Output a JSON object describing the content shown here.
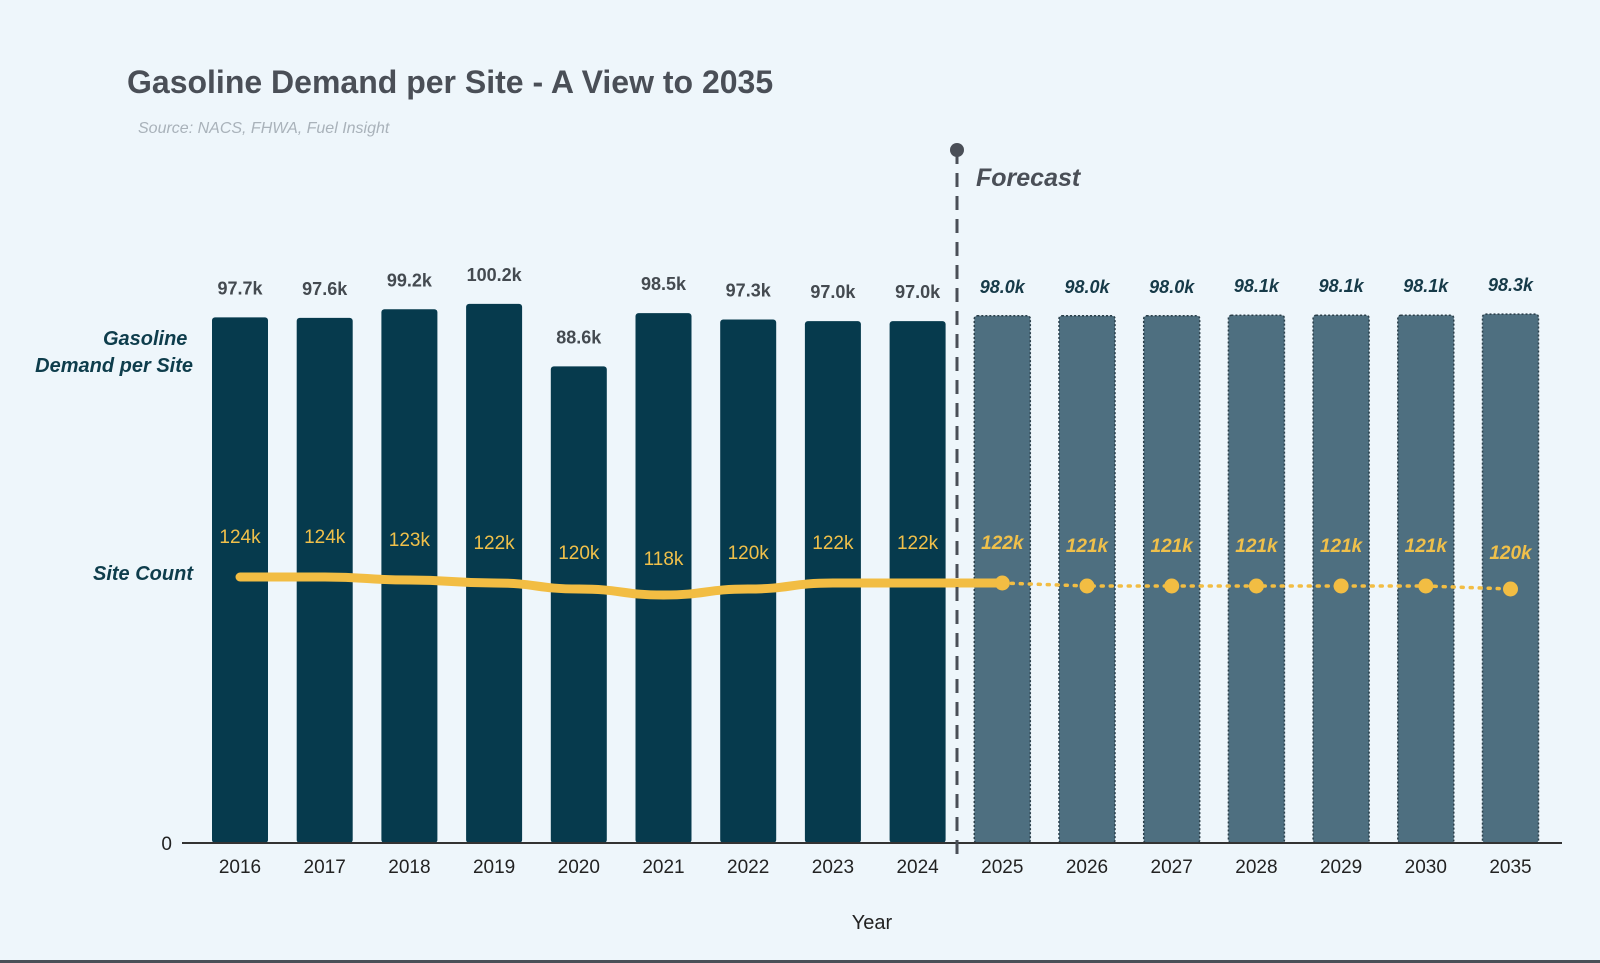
{
  "chart_data": {
    "type": "bar",
    "title": "Gasoline Demand per Site - A View to 2035",
    "subtitle": "Source: NACS, FHWA, Fuel Insight",
    "xlabel": "Year",
    "ylabel_bars": "Gasoline Demand per Site",
    "ylabel_line": "Site Count",
    "y_zero_label": "0",
    "forecast_label": "Forecast",
    "forecast_start_category": "2025",
    "categories": [
      "2016",
      "2017",
      "2018",
      "2019",
      "2020",
      "2021",
      "2022",
      "2023",
      "2024",
      "2025",
      "2026",
      "2027",
      "2028",
      "2029",
      "2030",
      "2035"
    ],
    "series": [
      {
        "name": "Gasoline Demand per Site",
        "type": "bar",
        "values": [
          97.7,
          97.6,
          99.2,
          100.2,
          88.6,
          98.5,
          97.3,
          97.0,
          97.0,
          98.0,
          98.0,
          98.0,
          98.1,
          98.1,
          98.1,
          98.3
        ],
        "labels": [
          "97.7k",
          "97.6k",
          "99.2k",
          "100.2k",
          "88.6k",
          "98.5k",
          "97.3k",
          "97.0k",
          "97.0k",
          "98.0k",
          "98.0k",
          "98.0k",
          "98.1k",
          "98.1k",
          "98.1k",
          "98.3k"
        ],
        "units": "thousand"
      },
      {
        "name": "Site Count",
        "type": "line",
        "values": [
          124,
          124,
          123,
          122,
          120,
          118,
          120,
          122,
          122,
          122,
          121,
          121,
          121,
          121,
          121,
          120
        ],
        "labels": [
          "124k",
          "124k",
          "123k",
          "122k",
          "120k",
          "118k",
          "120k",
          "122k",
          "122k",
          "122k",
          "121k",
          "121k",
          "121k",
          "121k",
          "121k",
          "120k"
        ],
        "units": "thousand"
      }
    ],
    "forecast_flags": [
      false,
      false,
      false,
      false,
      false,
      false,
      false,
      false,
      false,
      true,
      true,
      true,
      true,
      true,
      true,
      true
    ],
    "ylim_bars": [
      0,
      102
    ],
    "colors": {
      "actual_bar": "#063a4d",
      "forecast_bar": "#4e6f80",
      "line": "#f2bd43",
      "forecast_divider": "#4a4f57",
      "axis": "#333333"
    }
  }
}
